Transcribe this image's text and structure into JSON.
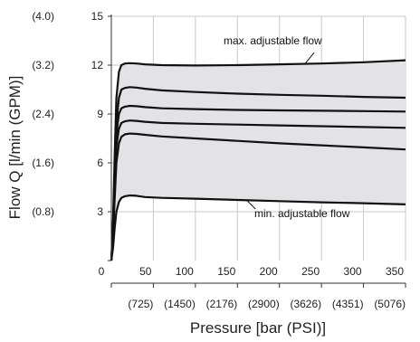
{
  "colors": {
    "band_fill": "#e3e3e5",
    "curve": "#111111",
    "grid": "#c8c8c8",
    "axis": "#333333",
    "text": "#222222"
  },
  "chart_data": {
    "type": "line",
    "xlabel": "Pressure [bar (PSI)]",
    "ylabel": "Flow Q [l/min (GPM)]",
    "xlim": [
      0,
      350
    ],
    "ylim": [
      0,
      15
    ],
    "grid": true,
    "x_ticks": [
      {
        "value": 0,
        "label": "0",
        "psi": ""
      },
      {
        "value": 50,
        "label": "50",
        "psi": "(725)"
      },
      {
        "value": 100,
        "label": "100",
        "psi": "(1450)"
      },
      {
        "value": 150,
        "label": "150",
        "psi": "(2176)"
      },
      {
        "value": 200,
        "label": "200",
        "psi": "(2900)"
      },
      {
        "value": 250,
        "label": "250",
        "psi": "(3626)"
      },
      {
        "value": 300,
        "label": "300",
        "psi": "(4351)"
      },
      {
        "value": 350,
        "label": "350",
        "psi": "(5076)"
      }
    ],
    "y_ticks": [
      {
        "value": 3,
        "label": "3",
        "gpm": "(0.8)"
      },
      {
        "value": 6,
        "label": "6",
        "gpm": "(1.6)"
      },
      {
        "value": 9,
        "label": "9",
        "gpm": "(2.4)"
      },
      {
        "value": 12,
        "label": "12",
        "gpm": "(3.2)"
      },
      {
        "value": 15,
        "label": "15",
        "gpm": "(4.0)"
      }
    ],
    "series": [
      {
        "x": [
          0,
          2,
          4,
          6,
          9,
          12,
          16,
          22,
          30,
          40,
          60,
          100,
          150,
          200,
          250,
          300,
          350
        ],
        "y": [
          0,
          0.8,
          2.0,
          3.0,
          3.6,
          3.85,
          3.95,
          4.0,
          3.98,
          3.9,
          3.85,
          3.8,
          3.72,
          3.65,
          3.58,
          3.52,
          3.45
        ]
      },
      {
        "x": [
          0,
          2,
          4,
          6,
          9,
          12,
          16,
          22,
          30,
          40,
          60,
          100,
          150,
          200,
          250,
          300,
          350
        ],
        "y": [
          0,
          1.5,
          3.8,
          6.0,
          7.2,
          7.6,
          7.75,
          7.8,
          7.78,
          7.72,
          7.62,
          7.5,
          7.35,
          7.2,
          7.08,
          6.95,
          6.82
        ]
      },
      {
        "x": [
          0,
          2,
          4,
          6,
          9,
          12,
          16,
          22,
          30,
          40,
          60,
          100,
          150,
          200,
          250,
          300,
          350
        ],
        "y": [
          0,
          1.8,
          4.5,
          7.0,
          8.1,
          8.45,
          8.55,
          8.6,
          8.58,
          8.52,
          8.45,
          8.4,
          8.35,
          8.3,
          8.25,
          8.2,
          8.15
        ]
      },
      {
        "x": [
          0,
          2,
          4,
          6,
          9,
          12,
          16,
          22,
          30,
          40,
          60,
          100,
          150,
          200,
          250,
          300,
          350
        ],
        "y": [
          0,
          2.0,
          5.0,
          7.8,
          9.0,
          9.35,
          9.45,
          9.5,
          9.48,
          9.42,
          9.35,
          9.3,
          9.25,
          9.22,
          9.2,
          9.18,
          9.15
        ]
      },
      {
        "x": [
          0,
          2,
          4,
          6,
          9,
          12,
          16,
          22,
          30,
          40,
          60,
          100,
          150,
          200,
          250,
          300,
          350
        ],
        "y": [
          0,
          2.2,
          5.5,
          8.5,
          10.0,
          10.5,
          10.6,
          10.65,
          10.62,
          10.55,
          10.45,
          10.35,
          10.25,
          10.18,
          10.12,
          10.05,
          10.0
        ]
      },
      {
        "x": [
          0,
          2,
          4,
          6,
          9,
          12,
          16,
          22,
          30,
          40,
          60,
          100,
          150,
          200,
          250,
          300,
          350
        ],
        "y": [
          0,
          2.5,
          6.5,
          10.0,
          11.6,
          12.0,
          12.1,
          12.12,
          12.1,
          12.05,
          12.0,
          11.98,
          12.0,
          12.05,
          12.1,
          12.18,
          12.3
        ]
      }
    ],
    "annotations": [
      {
        "text": "max. adjustable flow",
        "series": 5
      },
      {
        "text": "min. adjustable flow",
        "series": 0
      }
    ]
  }
}
